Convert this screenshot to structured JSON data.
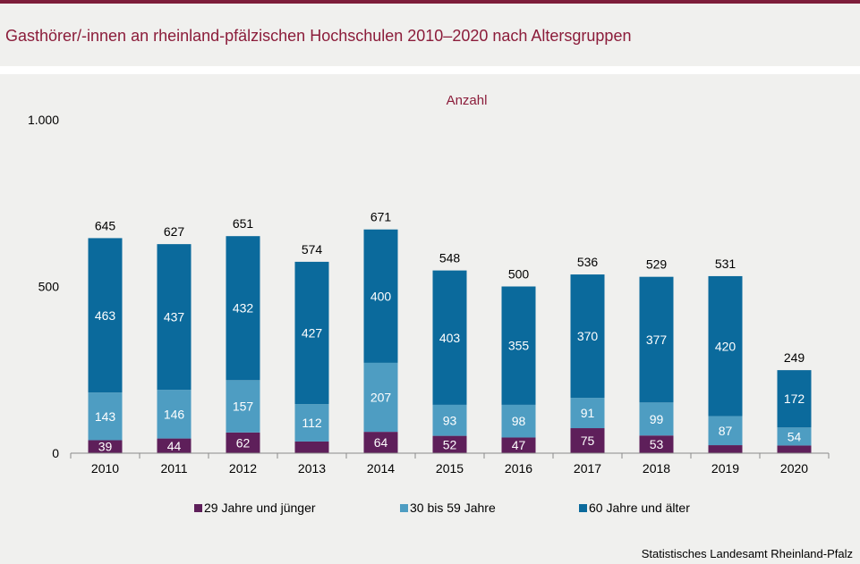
{
  "header": {
    "title": "Gasthörer/-innen an rheinland-pfälzischen Hochschulen 2010–2020 nach Altersgruppen"
  },
  "footer": {
    "source": "Statistisches Landesamt Rheinland-Pfalz"
  },
  "colors": {
    "title": "#8b1c3a",
    "background": "#f0f0ee",
    "series": [
      "#5e1f5a",
      "#4e9dc2",
      "#0b6a9c"
    ]
  },
  "chart_data": {
    "type": "bar",
    "stacked": true,
    "title": "Anzahl",
    "categories": [
      "2010",
      "2011",
      "2012",
      "2013",
      "2014",
      "2015",
      "2016",
      "2017",
      "2018",
      "2019",
      "2020"
    ],
    "series": [
      {
        "name": "29 Jahre und jünger",
        "values": [
          39,
          44,
          62,
          35,
          64,
          52,
          47,
          75,
          53,
          24,
          23
        ],
        "labels": [
          "39",
          "44",
          "62",
          "",
          "64",
          "52",
          "47",
          "75",
          "53",
          "",
          ""
        ]
      },
      {
        "name": "30 bis 59 Jahre",
        "values": [
          143,
          146,
          157,
          112,
          207,
          93,
          98,
          91,
          99,
          87,
          54
        ],
        "labels": [
          "143",
          "146",
          "157",
          "112",
          "207",
          "93",
          "98",
          "91",
          "99",
          "87",
          "54"
        ]
      },
      {
        "name": "60 Jahre und älter",
        "values": [
          463,
          437,
          432,
          427,
          400,
          403,
          355,
          370,
          377,
          420,
          172
        ],
        "labels": [
          "463",
          "437",
          "432",
          "427",
          "400",
          "403",
          "355",
          "370",
          "377",
          "420",
          "172"
        ]
      }
    ],
    "totals": [
      "645",
      "627",
      "651",
      "574",
      "671",
      "548",
      "500",
      "536",
      "529",
      "531",
      "249"
    ],
    "ylim": [
      0,
      1000
    ],
    "yticks": [
      0,
      500,
      1000
    ],
    "ytick_labels": [
      "0",
      "500",
      "1.000"
    ],
    "grid": false,
    "legend_position": "bottom"
  }
}
